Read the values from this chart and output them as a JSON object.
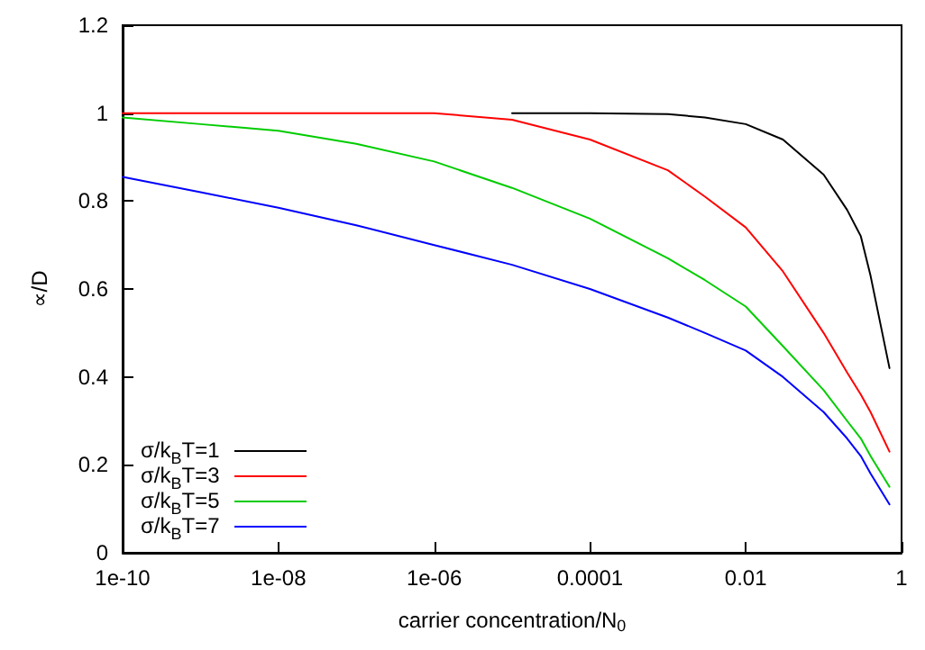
{
  "chart_data": {
    "type": "line",
    "xlabel": "carrier concentration/N$_{0}$",
    "ylabel": "∝/D",
    "x": [
      1e-10,
      1e-09,
      1e-08,
      1e-07,
      1e-06,
      1e-05,
      0.0001,
      0.001,
      0.003,
      0.01,
      0.03,
      0.1,
      0.2,
      0.3,
      0.4,
      0.7
    ],
    "series": [
      {
        "name": "σ/k$_{B}$T=1",
        "color": "#000000",
        "values": [
          null,
          null,
          null,
          null,
          null,
          1,
          1,
          0.998,
          0.99,
          0.975,
          0.94,
          0.86,
          0.78,
          0.72,
          0.63,
          0.42
        ]
      },
      {
        "name": "σ/k$_{B}$T=3",
        "color": "#ff0000",
        "values": [
          1,
          1,
          1,
          1,
          1,
          0.985,
          0.94,
          0.87,
          0.81,
          0.74,
          0.64,
          0.5,
          0.41,
          0.36,
          0.32,
          0.23
        ]
      },
      {
        "name": "σ/k$_{B}$T=5",
        "color": "#00cc00",
        "values": [
          0.99,
          0.975,
          0.96,
          0.93,
          0.89,
          0.83,
          0.76,
          0.67,
          0.62,
          0.56,
          0.47,
          0.37,
          0.3,
          0.26,
          0.22,
          0.15
        ]
      },
      {
        "name": "σ/k$_{B}$T=7",
        "color": "#0000ff",
        "values": [
          0.855,
          0.82,
          0.785,
          0.745,
          0.7,
          0.655,
          0.6,
          0.535,
          0.5,
          0.46,
          0.4,
          0.32,
          0.26,
          0.22,
          0.18,
          0.11
        ]
      }
    ],
    "log": "x",
    "xlim": [
      1e-10,
      1
    ],
    "xticks": [
      {
        "value": 1e-10,
        "label": "1e-10"
      },
      {
        "value": 1e-08,
        "label": "1e-08"
      },
      {
        "value": 1e-06,
        "label": "1e-06"
      },
      {
        "value": 0.0001,
        "label": "0.0001"
      },
      {
        "value": 0.01,
        "label": "0.01"
      },
      {
        "value": 1,
        "label": "1"
      }
    ],
    "ylim": [
      0,
      1.2
    ],
    "yticks": [
      0,
      0.2,
      0.4,
      0.6,
      0.8,
      1,
      1.2
    ],
    "legend": "bottom left",
    "grid": false,
    "marker": "none",
    "line_style": "solid"
  }
}
